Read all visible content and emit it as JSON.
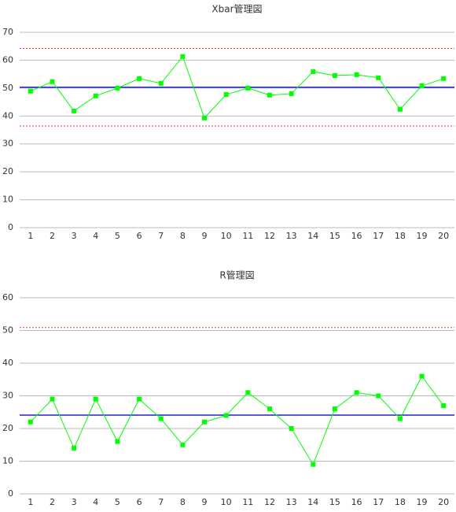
{
  "chart_data": [
    {
      "type": "line",
      "title": "Xbar管理図",
      "categories": [
        "1",
        "2",
        "3",
        "4",
        "5",
        "6",
        "7",
        "8",
        "9",
        "10",
        "11",
        "12",
        "13",
        "14",
        "15",
        "16",
        "17",
        "18",
        "19",
        "20"
      ],
      "series": [
        {
          "color": "#00ff00",
          "values": [
            48.9,
            52.3,
            41.8,
            47.2,
            50,
            53.4,
            51.7,
            61.3,
            39.3,
            47.7,
            50,
            47.5,
            48,
            55.9,
            54.5,
            54.8,
            53.7,
            42.4,
            50.8,
            53.4
          ]
        }
      ],
      "reference_lines": [
        {
          "value": 64.2,
          "color": "#ff3333",
          "style": "dashed"
        },
        {
          "value": 50.3,
          "color": "#2222cc",
          "style": "solid"
        },
        {
          "value": 36.4,
          "color": "#ff3333",
          "style": "dashed"
        }
      ],
      "ylim": [
        0,
        70
      ],
      "yticks": [
        0,
        10,
        20,
        30,
        40,
        50,
        60,
        70
      ],
      "grid": true
    },
    {
      "type": "line",
      "title": "R管理図",
      "categories": [
        "1",
        "2",
        "3",
        "4",
        "5",
        "6",
        "7",
        "8",
        "9",
        "10",
        "11",
        "12",
        "13",
        "14",
        "15",
        "16",
        "17",
        "18",
        "19",
        "20"
      ],
      "series": [
        {
          "color": "#00ff00",
          "values": [
            22,
            29,
            14,
            29,
            16,
            29,
            23,
            15,
            22,
            24,
            31,
            26,
            20,
            9,
            26,
            31,
            30,
            23,
            36,
            27
          ]
        }
      ],
      "reference_lines": [
        {
          "value": 50.9,
          "color": "#ff3333",
          "style": "dashed"
        },
        {
          "value": 24.1,
          "color": "#2222cc",
          "style": "solid"
        }
      ],
      "ylim": [
        0,
        60
      ],
      "yticks": [
        0,
        10,
        20,
        30,
        40,
        50,
        60
      ],
      "grid": true
    }
  ]
}
